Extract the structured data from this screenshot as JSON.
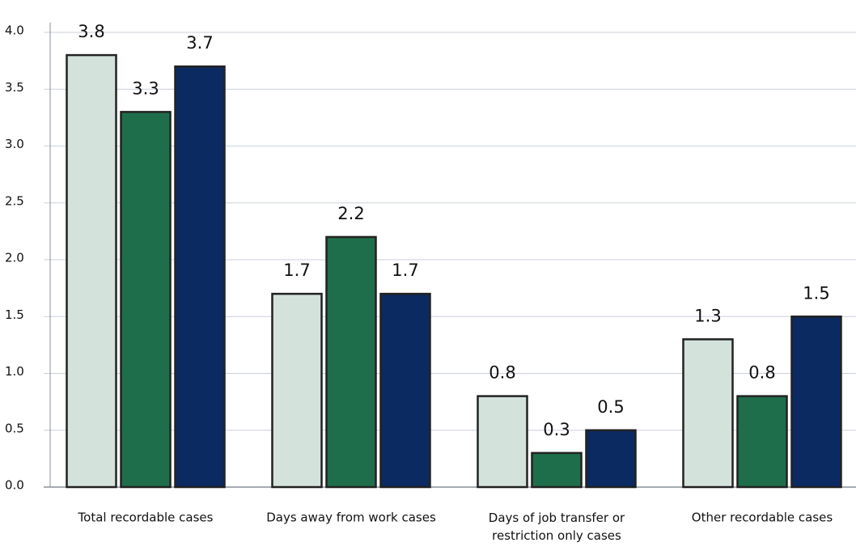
{
  "chart_data": {
    "type": "bar",
    "categories": [
      "Total recordable cases",
      "Days away from work cases",
      "Days of job transfer or restriction only cases",
      "Other recordable cases"
    ],
    "series": [
      {
        "color": "#d4e2dc",
        "values": [
          3.8,
          1.7,
          0.8,
          1.3
        ]
      },
      {
        "color": "#1f6e4b",
        "values": [
          3.3,
          2.2,
          0.3,
          0.8
        ]
      },
      {
        "color": "#0b2a62",
        "values": [
          3.7,
          1.7,
          0.5,
          1.5
        ]
      }
    ],
    "ylim": [
      0,
      4
    ],
    "yticks": [
      {
        "value": 0,
        "label": "0.0"
      },
      0.5,
      {
        "value": 1,
        "label": "1.0"
      },
      1.5,
      {
        "value": 2,
        "label": "2.0"
      },
      2.5,
      {
        "value": 3,
        "label": "3.0"
      },
      3.5,
      {
        "value": 4,
        "label": "4.0"
      }
    ],
    "grid": true
  }
}
